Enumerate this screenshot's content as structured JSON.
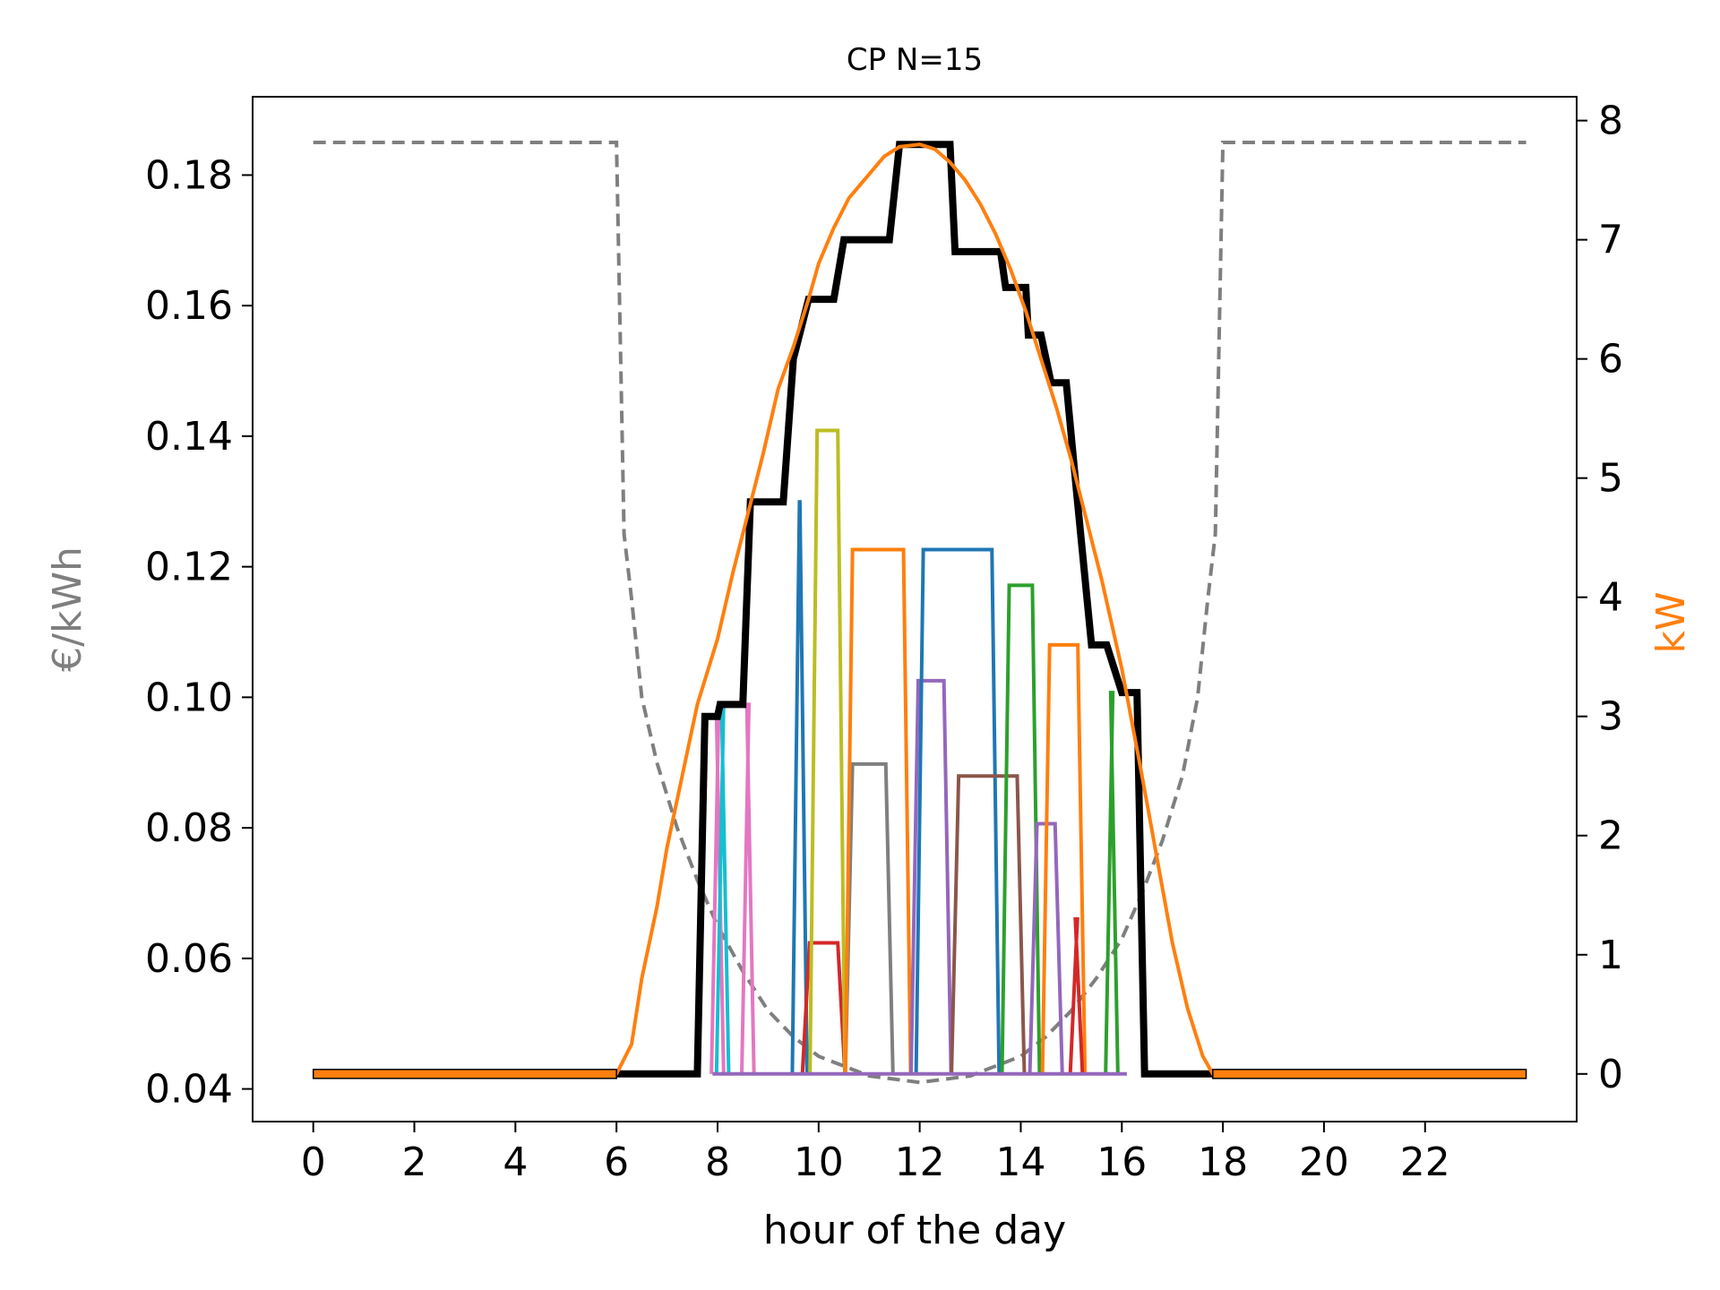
{
  "chart_data": {
    "type": "line",
    "title": "CP N=15",
    "xlabel": "hour of the day",
    "ylabel_left": "€/kWh",
    "ylabel_right": "kW",
    "xlim": [
      -1.2,
      25.0
    ],
    "ylim_left": [
      0.035,
      0.192
    ],
    "ylim_right": [
      -0.4,
      8.2
    ],
    "x_ticks": [
      "0",
      "2",
      "4",
      "6",
      "8",
      "10",
      "12",
      "14",
      "16",
      "18",
      "20",
      "22"
    ],
    "x_tick_values": [
      0,
      2,
      4,
      6,
      8,
      10,
      12,
      14,
      16,
      18,
      20,
      22
    ],
    "y_ticks_left": [
      "0.04",
      "0.06",
      "0.08",
      "0.10",
      "0.12",
      "0.14",
      "0.16",
      "0.18"
    ],
    "y_tick_values_left": [
      0.04,
      0.06,
      0.08,
      0.1,
      0.12,
      0.14,
      0.16,
      0.18
    ],
    "y_ticks_right": [
      "0",
      "1",
      "2",
      "3",
      "4",
      "5",
      "6",
      "7",
      "8"
    ],
    "y_tick_values_right": [
      0,
      1,
      2,
      3,
      4,
      5,
      6,
      7,
      8
    ],
    "grid": false,
    "legend": "none",
    "colors": {
      "price": "#7f7f7f",
      "pv": "#ff7f0e",
      "total": "#000000",
      "ylabel_left": "#7f7f7f",
      "ylabel_right": "#ff7f0e"
    },
    "price_series": {
      "axis": "left",
      "style": "dashed",
      "x": [
        0,
        6,
        6.15,
        6.3,
        6.5,
        6.8,
        7.2,
        7.6,
        8.0,
        8.5,
        9.0,
        9.5,
        10.0,
        10.5,
        11.0,
        11.5,
        12.0,
        12.5,
        13.0,
        13.5,
        14.0,
        14.5,
        15.0,
        15.5,
        16.0,
        16.4,
        16.8,
        17.2,
        17.5,
        17.7,
        17.85,
        18,
        24
      ],
      "y": [
        0.185,
        0.185,
        0.125,
        0.115,
        0.1,
        0.09,
        0.08,
        0.072,
        0.065,
        0.058,
        0.052,
        0.048,
        0.045,
        0.0435,
        0.042,
        0.0415,
        0.041,
        0.0415,
        0.042,
        0.0435,
        0.045,
        0.048,
        0.052,
        0.057,
        0.063,
        0.07,
        0.078,
        0.088,
        0.1,
        0.115,
        0.125,
        0.185,
        0.185
      ]
    },
    "pv_series": {
      "axis": "right",
      "x": [
        0,
        6,
        6.3,
        6.5,
        6.8,
        7.0,
        7.3,
        7.6,
        8.0,
        8.3,
        8.6,
        8.9,
        9.2,
        9.5,
        9.8,
        10.0,
        10.3,
        10.6,
        11.0,
        11.3,
        11.6,
        12.0,
        12.3,
        12.6,
        12.9,
        13.2,
        13.5,
        13.8,
        14.1,
        14.4,
        14.7,
        15.0,
        15.3,
        15.6,
        16.0,
        16.4,
        16.7,
        17.0,
        17.3,
        17.6,
        17.8,
        24
      ],
      "y": [
        0,
        0,
        0.25,
        0.8,
        1.4,
        1.9,
        2.5,
        3.1,
        3.65,
        4.2,
        4.7,
        5.2,
        5.75,
        6.1,
        6.5,
        6.8,
        7.1,
        7.35,
        7.55,
        7.7,
        7.78,
        7.8,
        7.76,
        7.65,
        7.5,
        7.3,
        7.05,
        6.75,
        6.4,
        6.0,
        5.6,
        5.15,
        4.65,
        4.15,
        3.4,
        2.5,
        1.8,
        1.1,
        0.55,
        0.15,
        0,
        0
      ]
    },
    "total_series": {
      "axis": "right",
      "x": [
        0,
        7.6,
        7.75,
        8.0,
        8.05,
        8.5,
        8.65,
        9.3,
        9.5,
        9.8,
        10.3,
        10.5,
        11.4,
        11.6,
        12.6,
        12.7,
        13.6,
        13.7,
        14.1,
        14.15,
        14.4,
        14.6,
        14.9,
        15.1,
        15.4,
        15.7,
        16.0,
        16.3,
        16.45,
        17.8,
        24
      ],
      "y": [
        0,
        0,
        3.0,
        3.0,
        3.1,
        3.1,
        4.8,
        4.8,
        6.0,
        6.5,
        6.5,
        7.0,
        7.0,
        7.8,
        7.8,
        6.9,
        6.9,
        6.6,
        6.6,
        6.2,
        6.2,
        5.8,
        5.8,
        4.9,
        3.6,
        3.6,
        3.2,
        3.2,
        0,
        0,
        0
      ]
    },
    "charging_sessions": [
      {
        "color": "#e377c2",
        "start": 7.95,
        "end": 8.05,
        "kw": 3.0
      },
      {
        "color": "#17becf",
        "start": 8.05,
        "end": 8.15,
        "kw": 3.1
      },
      {
        "color": "#e377c2",
        "start": 8.55,
        "end": 8.65,
        "kw": 3.1
      },
      {
        "color": "#1f77b4",
        "start": 9.55,
        "end": 9.7,
        "kw": 4.8
      },
      {
        "color": "#d62728",
        "start": 9.75,
        "end": 10.45,
        "kw": 1.1
      },
      {
        "color": "#bcbd22",
        "start": 9.9,
        "end": 10.45,
        "kw": 5.4
      },
      {
        "color": "#7f7f7f",
        "start": 10.6,
        "end": 11.4,
        "kw": 2.6
      },
      {
        "color": "#ff7f0e",
        "start": 10.6,
        "end": 11.75,
        "kw": 4.4
      },
      {
        "color": "#9467bd",
        "start": 11.9,
        "end": 12.55,
        "kw": 3.3
      },
      {
        "color": "#1f77b4",
        "start": 12.0,
        "end": 13.5,
        "kw": 4.4
      },
      {
        "color": "#8c564b",
        "start": 12.7,
        "end": 14.0,
        "kw": 2.5
      },
      {
        "color": "#2ca02c",
        "start": 13.7,
        "end": 14.3,
        "kw": 4.1
      },
      {
        "color": "#9467bd",
        "start": 14.25,
        "end": 14.75,
        "kw": 2.1
      },
      {
        "color": "#ff7f0e",
        "start": 14.5,
        "end": 15.2,
        "kw": 3.6
      },
      {
        "color": "#d62728",
        "start": 15.05,
        "end": 15.15,
        "kw": 1.3
      },
      {
        "color": "#2ca02c",
        "start": 15.75,
        "end": 15.85,
        "kw": 3.2
      }
    ]
  }
}
